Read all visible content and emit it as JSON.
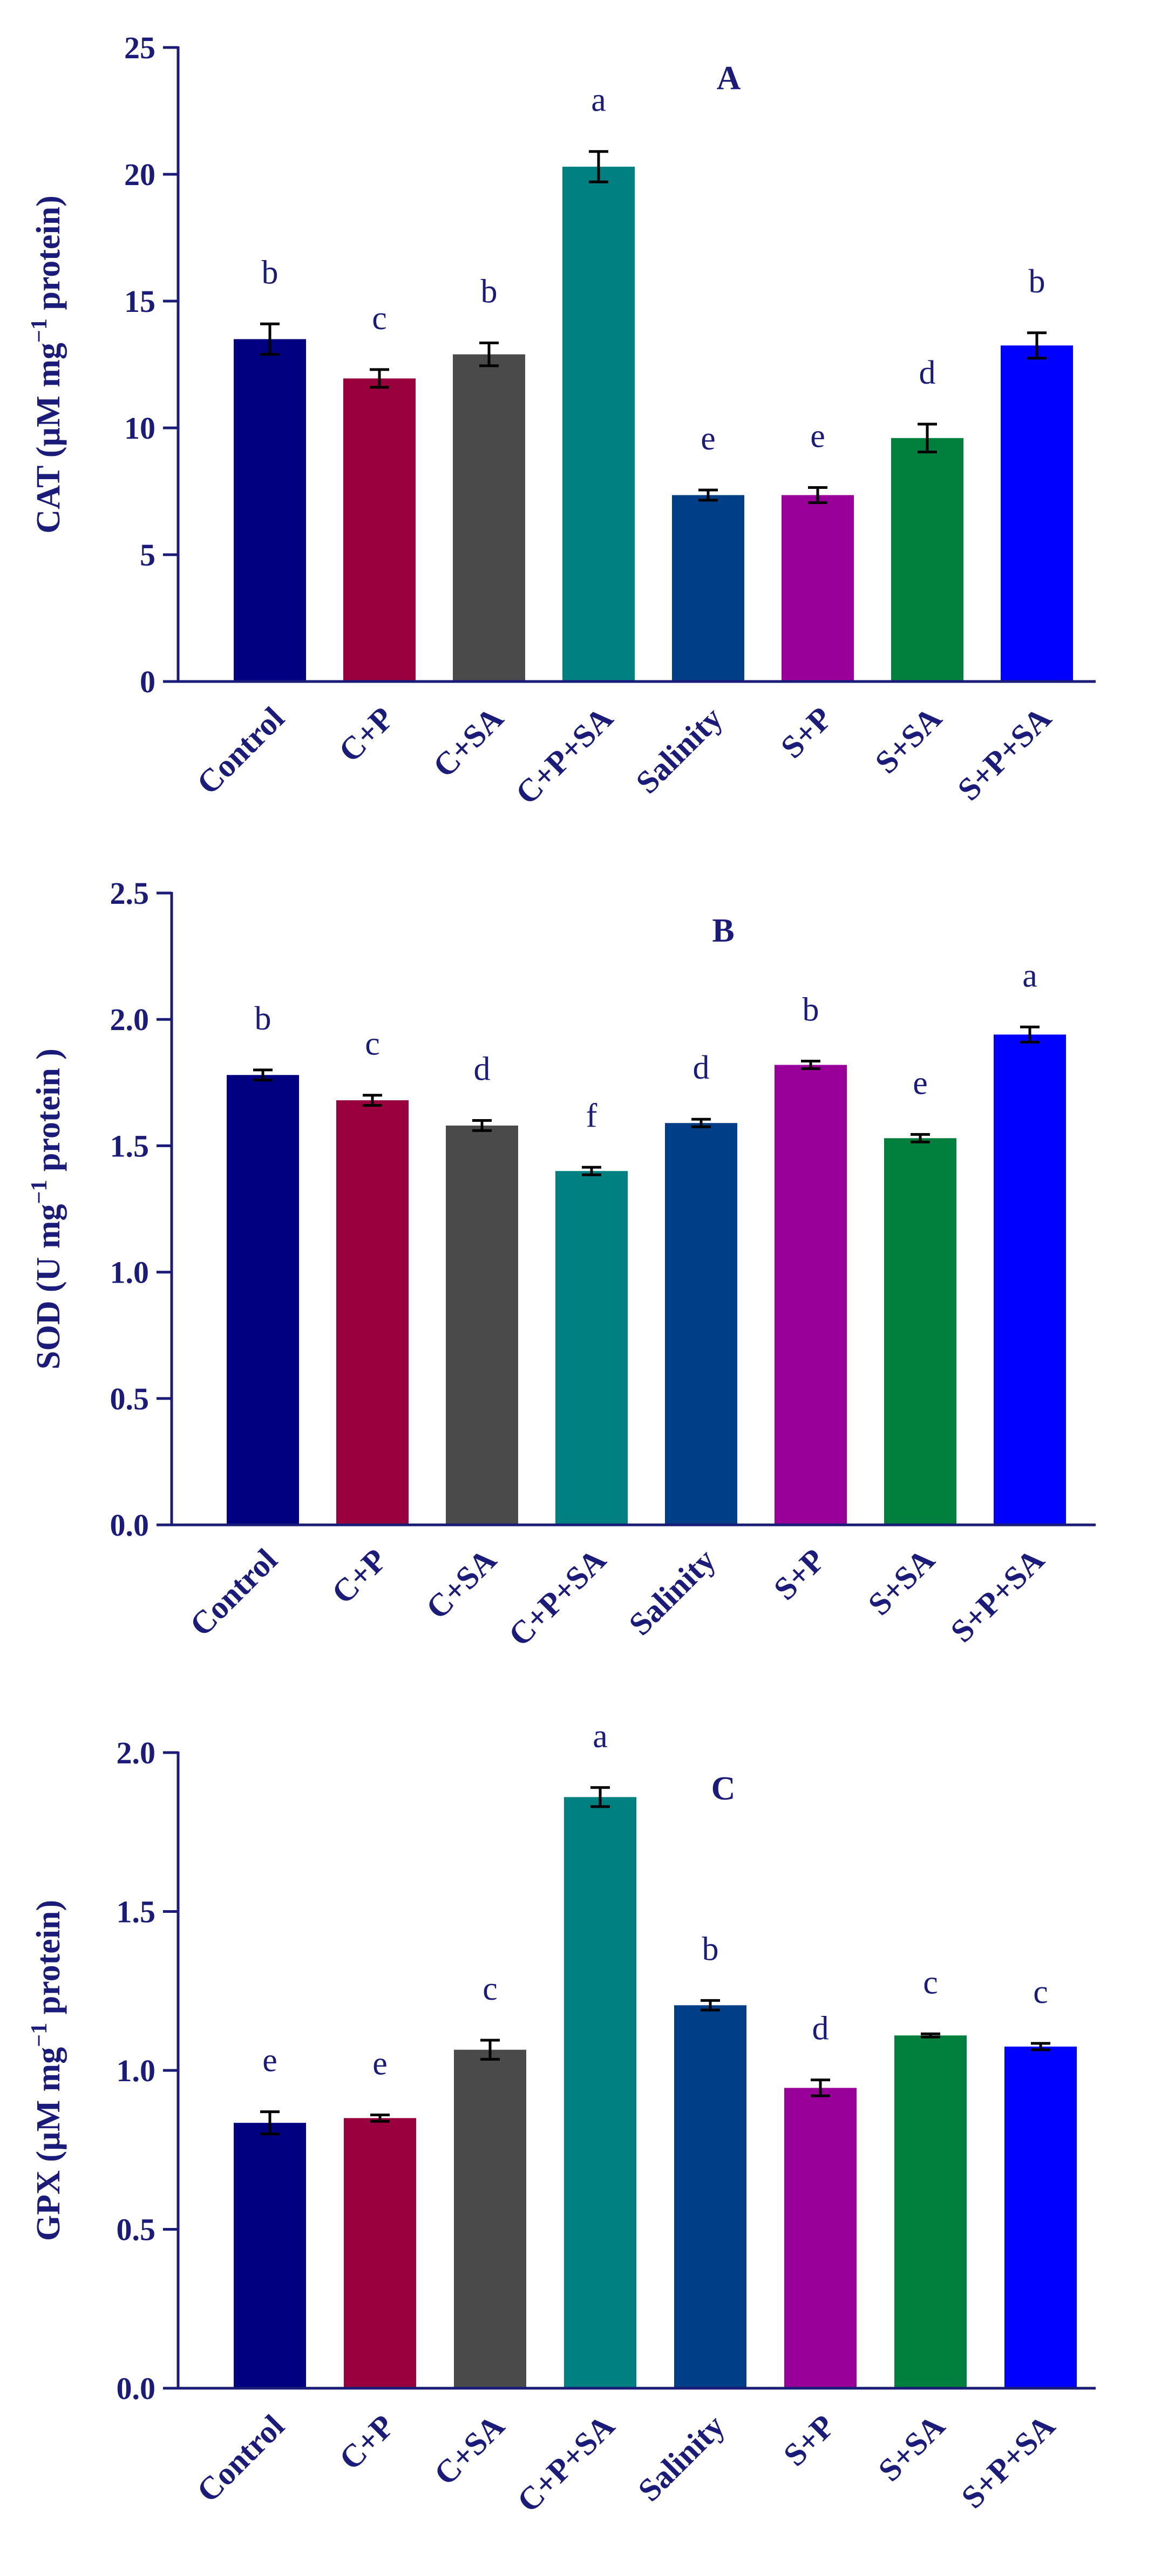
{
  "chart_data": [
    {
      "type": "bar",
      "panel_label": "A",
      "ylabel_main": "CAT (µM mg",
      "ylabel_sup": "−1",
      "ylabel_end": " protein)",
      "ylim": [
        0,
        25
      ],
      "yticks": [
        0,
        5,
        10,
        15,
        20,
        25
      ],
      "ytick_labels": [
        "0",
        "5",
        "10",
        "15",
        "20",
        "25"
      ],
      "categories": [
        "Control",
        "C+P",
        "C+SA",
        "C+P+SA",
        "Salinity",
        "S+P",
        "S+SA",
        "S+P+SA"
      ],
      "values": [
        13.5,
        11.95,
        12.9,
        20.3,
        7.35,
        7.35,
        9.6,
        13.25
      ],
      "errors": [
        0.6,
        0.35,
        0.45,
        0.6,
        0.2,
        0.3,
        0.55,
        0.5
      ],
      "letters": [
        "b",
        "c",
        "b",
        "a",
        "e",
        "e",
        "d",
        "b"
      ],
      "colors": [
        "#000080",
        "#99003d",
        "#4a4a4a",
        "#008080",
        "#003f88",
        "#990099",
        "#00803c",
        "#0000ff"
      ]
    },
    {
      "type": "bar",
      "panel_label": "B",
      "ylabel_main": "SOD (U mg",
      "ylabel_sup": "−1",
      "ylabel_end": " protein )",
      "ylim": [
        0,
        2.5
      ],
      "yticks": [
        0,
        0.5,
        1.0,
        1.5,
        2.0,
        2.5
      ],
      "ytick_labels": [
        "0.0",
        "0.5",
        "1.0",
        "1.5",
        "2.0",
        "2.5"
      ],
      "categories": [
        "Control",
        "C+P",
        "C+SA",
        "C+P+SA",
        "Salinity",
        "S+P",
        "S+SA",
        "S+P+SA"
      ],
      "values": [
        1.78,
        1.68,
        1.58,
        1.4,
        1.59,
        1.82,
        1.53,
        1.94
      ],
      "errors": [
        0.02,
        0.02,
        0.02,
        0.015,
        0.015,
        0.015,
        0.015,
        0.03
      ],
      "letters": [
        "b",
        "c",
        "d",
        "f",
        "d",
        "b",
        "e",
        "a"
      ],
      "colors": [
        "#000080",
        "#99003d",
        "#4a4a4a",
        "#008080",
        "#003f88",
        "#990099",
        "#00803c",
        "#0000ff"
      ]
    },
    {
      "type": "bar",
      "panel_label": "C",
      "ylabel_main": "GPX (µM mg",
      "ylabel_sup": "−1",
      "ylabel_end": " protein)",
      "ylim": [
        0,
        2.0
      ],
      "yticks": [
        0,
        0.5,
        1.0,
        1.5,
        2.0
      ],
      "ytick_labels": [
        "0.0",
        "0.5",
        "1.0",
        "1.5",
        "2.0"
      ],
      "categories": [
        "Control",
        "C+P",
        "C+SA",
        "C+P+SA",
        "Salinity",
        "S+P",
        "S+SA",
        "S+P+SA"
      ],
      "values": [
        0.835,
        0.85,
        1.065,
        1.86,
        1.205,
        0.945,
        1.11,
        1.075
      ],
      "errors": [
        0.035,
        0.01,
        0.03,
        0.03,
        0.015,
        0.025,
        0.005,
        0.01
      ],
      "letters": [
        "e",
        "e",
        "c",
        "a",
        "b",
        "d",
        "c",
        "c"
      ],
      "colors": [
        "#000080",
        "#99003d",
        "#4a4a4a",
        "#008080",
        "#003f88",
        "#990099",
        "#00803c",
        "#0000ff"
      ]
    }
  ]
}
